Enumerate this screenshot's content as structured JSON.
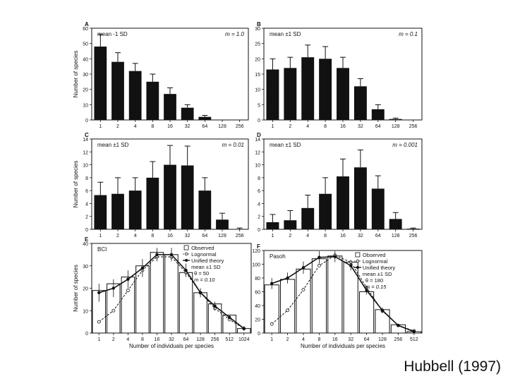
{
  "caption": "Hubbell (1997)",
  "colors": {
    "ink": "#111111",
    "bar": "#111111",
    "background": "#ffffff"
  },
  "chart_data": [
    {
      "id": "A",
      "type": "bar",
      "panel_label": "A",
      "stat_label": "mean -1 SD",
      "m_label": "m = 1.0",
      "categories": [
        "1",
        "2",
        "4",
        "8",
        "16",
        "32",
        "64",
        "128",
        "256"
      ],
      "values": [
        48,
        38,
        32,
        25,
        17,
        8,
        2,
        0,
        0
      ],
      "errors": [
        8,
        6,
        5,
        5,
        4,
        2,
        1,
        0,
        0
      ],
      "ylim": [
        0,
        60
      ],
      "yticks": [
        0,
        10,
        20,
        30,
        40,
        50,
        60
      ],
      "ylabel": "Number of species",
      "xlabel": ""
    },
    {
      "id": "B",
      "type": "bar",
      "panel_label": "B",
      "stat_label": "mean ±1 SD",
      "m_label": "m = 0.1",
      "categories": [
        "1",
        "2",
        "4",
        "8",
        "16",
        "32",
        "64",
        "128",
        "256"
      ],
      "values": [
        16.5,
        17,
        20.5,
        20,
        17,
        11,
        3.5,
        0.3,
        0
      ],
      "errors": [
        3.5,
        3.5,
        4,
        4,
        3.5,
        2.5,
        1.5,
        0.3,
        0
      ],
      "ylim": [
        0,
        30
      ],
      "yticks": [
        0,
        5,
        10,
        15,
        20,
        25,
        30
      ],
      "ylabel": "",
      "xlabel": ""
    },
    {
      "id": "C",
      "type": "bar",
      "panel_label": "C",
      "stat_label": "mean ±1 SD",
      "m_label": "m = 0.01",
      "categories": [
        "1",
        "2",
        "4",
        "8",
        "16",
        "32",
        "64",
        "128",
        "256"
      ],
      "values": [
        5.3,
        5.5,
        6,
        8,
        10,
        9.9,
        6,
        1.5,
        0
      ],
      "errors": [
        2,
        2.5,
        2,
        2.5,
        3,
        3,
        2,
        1,
        0.2
      ],
      "ylim": [
        0,
        14
      ],
      "yticks": [
        0,
        2,
        4,
        6,
        8,
        10,
        12,
        14
      ],
      "ylabel": "Number of species",
      "xlabel": ""
    },
    {
      "id": "D",
      "type": "bar",
      "panel_label": "D",
      "stat_label": "mean ±1 SD",
      "m_label": "m = 0.001",
      "categories": [
        "1",
        "2",
        "4",
        "8",
        "16",
        "32",
        "64",
        "128",
        "256"
      ],
      "values": [
        1.1,
        1.4,
        3.3,
        5.5,
        8.2,
        9.6,
        6.3,
        1.6,
        0.1
      ],
      "errors": [
        1.2,
        1.5,
        2,
        2.5,
        2.7,
        2.7,
        2,
        1,
        0.1
      ],
      "ylim": [
        0,
        14
      ],
      "yticks": [
        0,
        2,
        4,
        6,
        8,
        10,
        12,
        14
      ],
      "ylabel": "",
      "xlabel": ""
    },
    {
      "id": "E",
      "type": "bar",
      "panel_label": "E",
      "site": "BCI",
      "categories": [
        "1",
        "2",
        "4",
        "8",
        "16",
        "32",
        "64",
        "128",
        "256",
        "512",
        "1024"
      ],
      "observed": [
        19,
        22,
        25,
        30,
        36,
        35,
        27,
        18,
        13,
        8,
        2
      ],
      "lognormal": [
        5,
        10,
        19,
        28,
        34,
        34,
        27,
        18,
        11,
        6,
        2
      ],
      "unified": [
        18,
        20,
        24,
        29,
        35,
        35,
        28,
        18,
        12,
        7,
        2
      ],
      "unified_errors": [
        4,
        4,
        4,
        4,
        3,
        3,
        3,
        2,
        2,
        1,
        1
      ],
      "ylim": [
        0,
        40
      ],
      "yticks": [
        0,
        10,
        20,
        30,
        40
      ],
      "ylabel": "Number of species",
      "xlabel": "Number of individuals per species",
      "legend": {
        "observed": "Observed",
        "lognormal": "Lognormal",
        "unified": "Unified theory",
        "stat": "mean ±1 SD",
        "theta": "θ = 50",
        "m": "m = 0.10"
      }
    },
    {
      "id": "F",
      "type": "bar",
      "panel_label": "F",
      "site": "Pasoh",
      "categories": [
        "1",
        "2",
        "4",
        "8",
        "16",
        "32",
        "64",
        "128",
        "256",
        "512"
      ],
      "observed": [
        70,
        78,
        93,
        108,
        112,
        103,
        60,
        34,
        12,
        2
      ],
      "lognormal": [
        13,
        33,
        63,
        98,
        113,
        103,
        66,
        32,
        11,
        3
      ],
      "unified": [
        72,
        80,
        95,
        110,
        111,
        98,
        62,
        33,
        11,
        2
      ],
      "unified_errors": [
        8,
        8,
        9,
        9,
        8,
        7,
        6,
        4,
        2,
        1
      ],
      "ylim": [
        0,
        120
      ],
      "yticks": [
        0,
        20,
        40,
        60,
        80,
        100,
        120
      ],
      "ylabel": "",
      "xlabel": "Number of individuals per species",
      "legend": {
        "observed": "Observed",
        "lognormal": "Lognormal",
        "unified": "Unified theory",
        "stat": "mean ±1 SD",
        "theta": "θ = 180",
        "m": "m = 0.15"
      }
    }
  ]
}
